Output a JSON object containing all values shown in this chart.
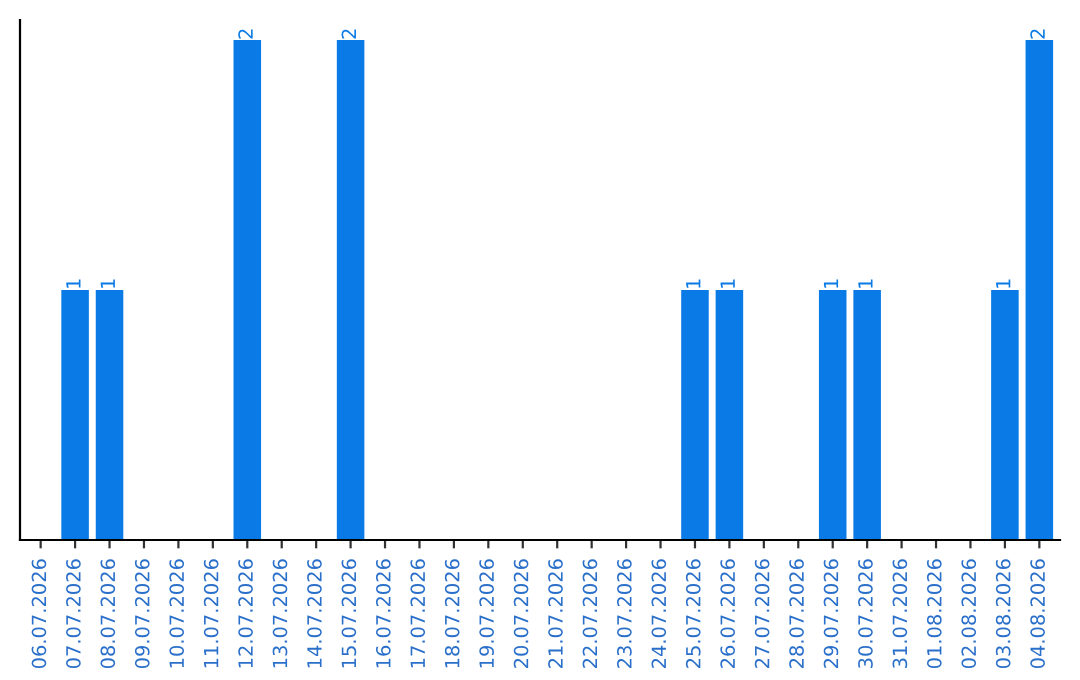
{
  "chart_data": {
    "type": "bar",
    "categories": [
      "06.07.2026",
      "07.07.2026",
      "08.07.2026",
      "09.07.2026",
      "10.07.2026",
      "11.07.2026",
      "12.07.2026",
      "13.07.2026",
      "14.07.2026",
      "15.07.2026",
      "16.07.2026",
      "17.07.2026",
      "18.07.2026",
      "19.07.2026",
      "20.07.2026",
      "21.07.2026",
      "22.07.2026",
      "23.07.2026",
      "24.07.2026",
      "25.07.2026",
      "26.07.2026",
      "27.07.2026",
      "28.07.2026",
      "29.07.2026",
      "30.07.2026",
      "31.07.2026",
      "01.08.2026",
      "02.08.2026",
      "03.08.2026",
      "04.08.2026"
    ],
    "values": [
      0,
      1,
      1,
      0,
      0,
      0,
      2,
      0,
      0,
      2,
      0,
      0,
      0,
      0,
      0,
      0,
      0,
      0,
      0,
      1,
      1,
      0,
      0,
      1,
      1,
      0,
      0,
      0,
      1,
      2
    ],
    "value_labels": [
      null,
      "1",
      "1",
      null,
      null,
      null,
      "2",
      null,
      null,
      "2",
      null,
      null,
      null,
      null,
      null,
      null,
      null,
      null,
      null,
      "1",
      "1",
      null,
      null,
      "1",
      "1",
      null,
      null,
      null,
      "1",
      "2"
    ],
    "color": "#0a7be6",
    "tick_labels": "x",
    "grid": false,
    "legend": false
  }
}
